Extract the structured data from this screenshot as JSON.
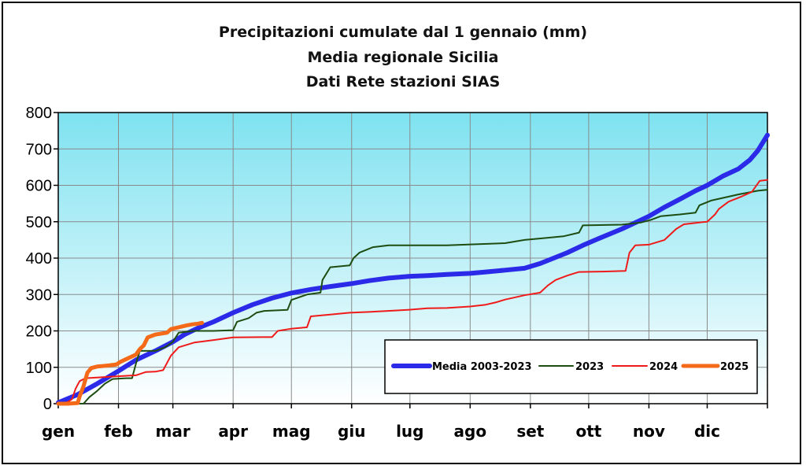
{
  "chart_data": {
    "type": "line",
    "title_lines": [
      "Precipitazioni cumulate dal 1 gennaio (mm)",
      "Media regionale Sicilia",
      "Dati Rete stazioni SIAS"
    ],
    "xlabel": "",
    "ylabel": "",
    "x_unit": "day of year",
    "xlim": [
      0,
      365
    ],
    "ylim": [
      0,
      800
    ],
    "y_ticks": [
      0,
      100,
      200,
      300,
      400,
      500,
      600,
      700,
      800
    ],
    "x_tick_labels": [
      {
        "label": "gen",
        "day": 0
      },
      {
        "label": "feb",
        "day": 31
      },
      {
        "label": "mar",
        "day": 59
      },
      {
        "label": "apr",
        "day": 90
      },
      {
        "label": "mag",
        "day": 120
      },
      {
        "label": "giu",
        "day": 151
      },
      {
        "label": "lug",
        "day": 181
      },
      {
        "label": "ago",
        "day": 212
      },
      {
        "label": "set",
        "day": 243
      },
      {
        "label": "ott",
        "day": 273
      },
      {
        "label": "nov",
        "day": 304
      },
      {
        "label": "dic",
        "day": 334
      }
    ],
    "grid": true,
    "background_gradient": [
      "#7ee2f0",
      "#ffffff"
    ],
    "legend_position": "bottom-right",
    "series": [
      {
        "name": "Media 2003-2023",
        "color": "#2a2ae8",
        "points": [
          [
            0,
            3
          ],
          [
            10,
            25
          ],
          [
            20,
            55
          ],
          [
            31,
            90
          ],
          [
            40,
            120
          ],
          [
            50,
            145
          ],
          [
            59,
            170
          ],
          [
            65,
            190
          ],
          [
            72,
            208
          ],
          [
            80,
            225
          ],
          [
            90,
            250
          ],
          [
            100,
            272
          ],
          [
            110,
            290
          ],
          [
            120,
            304
          ],
          [
            130,
            314
          ],
          [
            140,
            322
          ],
          [
            151,
            330
          ],
          [
            160,
            338
          ],
          [
            170,
            345
          ],
          [
            181,
            350
          ],
          [
            190,
            352
          ],
          [
            200,
            355
          ],
          [
            212,
            358
          ],
          [
            220,
            362
          ],
          [
            230,
            367
          ],
          [
            240,
            372
          ],
          [
            248,
            385
          ],
          [
            255,
            400
          ],
          [
            262,
            415
          ],
          [
            270,
            435
          ],
          [
            280,
            458
          ],
          [
            290,
            480
          ],
          [
            298,
            500
          ],
          [
            304,
            515
          ],
          [
            312,
            540
          ],
          [
            320,
            562
          ],
          [
            328,
            585
          ],
          [
            334,
            600
          ],
          [
            342,
            625
          ],
          [
            350,
            645
          ],
          [
            356,
            670
          ],
          [
            360,
            695
          ],
          [
            365,
            738
          ]
        ]
      },
      {
        "name": "2023",
        "color": "#1e4d12",
        "points": [
          [
            0,
            0
          ],
          [
            13,
            0
          ],
          [
            16,
            18
          ],
          [
            20,
            35
          ],
          [
            24,
            55
          ],
          [
            28,
            68
          ],
          [
            35,
            70
          ],
          [
            38,
            70
          ],
          [
            40,
            110
          ],
          [
            42,
            145
          ],
          [
            50,
            145
          ],
          [
            55,
            155
          ],
          [
            59,
            170
          ],
          [
            62,
            195
          ],
          [
            70,
            200
          ],
          [
            80,
            200
          ],
          [
            90,
            202
          ],
          [
            92,
            225
          ],
          [
            98,
            235
          ],
          [
            102,
            250
          ],
          [
            106,
            255
          ],
          [
            118,
            258
          ],
          [
            120,
            285
          ],
          [
            128,
            300
          ],
          [
            135,
            305
          ],
          [
            136,
            340
          ],
          [
            140,
            375
          ],
          [
            150,
            380
          ],
          [
            152,
            400
          ],
          [
            155,
            415
          ],
          [
            162,
            430
          ],
          [
            170,
            435
          ],
          [
            200,
            435
          ],
          [
            215,
            438
          ],
          [
            230,
            441
          ],
          [
            240,
            450
          ],
          [
            250,
            455
          ],
          [
            260,
            460
          ],
          [
            268,
            470
          ],
          [
            270,
            490
          ],
          [
            290,
            492
          ],
          [
            300,
            498
          ],
          [
            305,
            505
          ],
          [
            310,
            515
          ],
          [
            320,
            520
          ],
          [
            328,
            525
          ],
          [
            330,
            545
          ],
          [
            336,
            558
          ],
          [
            350,
            575
          ],
          [
            360,
            585
          ],
          [
            365,
            588
          ]
        ]
      },
      {
        "name": "2024",
        "color": "#ef1b1b",
        "points": [
          [
            0,
            0
          ],
          [
            3,
            2
          ],
          [
            5,
            5
          ],
          [
            7,
            12
          ],
          [
            9,
            42
          ],
          [
            11,
            62
          ],
          [
            14,
            70
          ],
          [
            20,
            72
          ],
          [
            30,
            75
          ],
          [
            40,
            78
          ],
          [
            45,
            87
          ],
          [
            50,
            88
          ],
          [
            54,
            92
          ],
          [
            56,
            112
          ],
          [
            58,
            132
          ],
          [
            62,
            155
          ],
          [
            70,
            168
          ],
          [
            80,
            175
          ],
          [
            90,
            182
          ],
          [
            105,
            183
          ],
          [
            110,
            183
          ],
          [
            113,
            200
          ],
          [
            120,
            206
          ],
          [
            128,
            210
          ],
          [
            130,
            240
          ],
          [
            140,
            245
          ],
          [
            150,
            250
          ],
          [
            160,
            252
          ],
          [
            180,
            258
          ],
          [
            190,
            262
          ],
          [
            200,
            263
          ],
          [
            212,
            267
          ],
          [
            220,
            272
          ],
          [
            225,
            278
          ],
          [
            230,
            286
          ],
          [
            240,
            298
          ],
          [
            248,
            305
          ],
          [
            252,
            325
          ],
          [
            256,
            340
          ],
          [
            262,
            352
          ],
          [
            268,
            362
          ],
          [
            280,
            363
          ],
          [
            292,
            365
          ],
          [
            294,
            415
          ],
          [
            297,
            435
          ],
          [
            304,
            437
          ],
          [
            312,
            450
          ],
          [
            318,
            480
          ],
          [
            322,
            493
          ],
          [
            330,
            498
          ],
          [
            334,
            500
          ],
          [
            338,
            520
          ],
          [
            340,
            535
          ],
          [
            345,
            555
          ],
          [
            352,
            570
          ],
          [
            357,
            582
          ],
          [
            361,
            612
          ],
          [
            365,
            615
          ]
        ]
      },
      {
        "name": "2025",
        "color": "#f46a18",
        "points": [
          [
            0,
            0
          ],
          [
            5,
            0
          ],
          [
            10,
            2
          ],
          [
            11,
            20
          ],
          [
            13,
            48
          ],
          [
            15,
            85
          ],
          [
            17,
            98
          ],
          [
            20,
            102
          ],
          [
            26,
            105
          ],
          [
            30,
            108
          ],
          [
            32,
            115
          ],
          [
            36,
            125
          ],
          [
            40,
            135
          ],
          [
            42,
            150
          ],
          [
            44,
            160
          ],
          [
            46,
            182
          ],
          [
            50,
            190
          ],
          [
            56,
            195
          ],
          [
            58,
            205
          ],
          [
            62,
            210
          ],
          [
            66,
            215
          ],
          [
            69,
            218
          ],
          [
            72,
            220
          ],
          [
            74,
            222
          ]
        ]
      }
    ]
  }
}
